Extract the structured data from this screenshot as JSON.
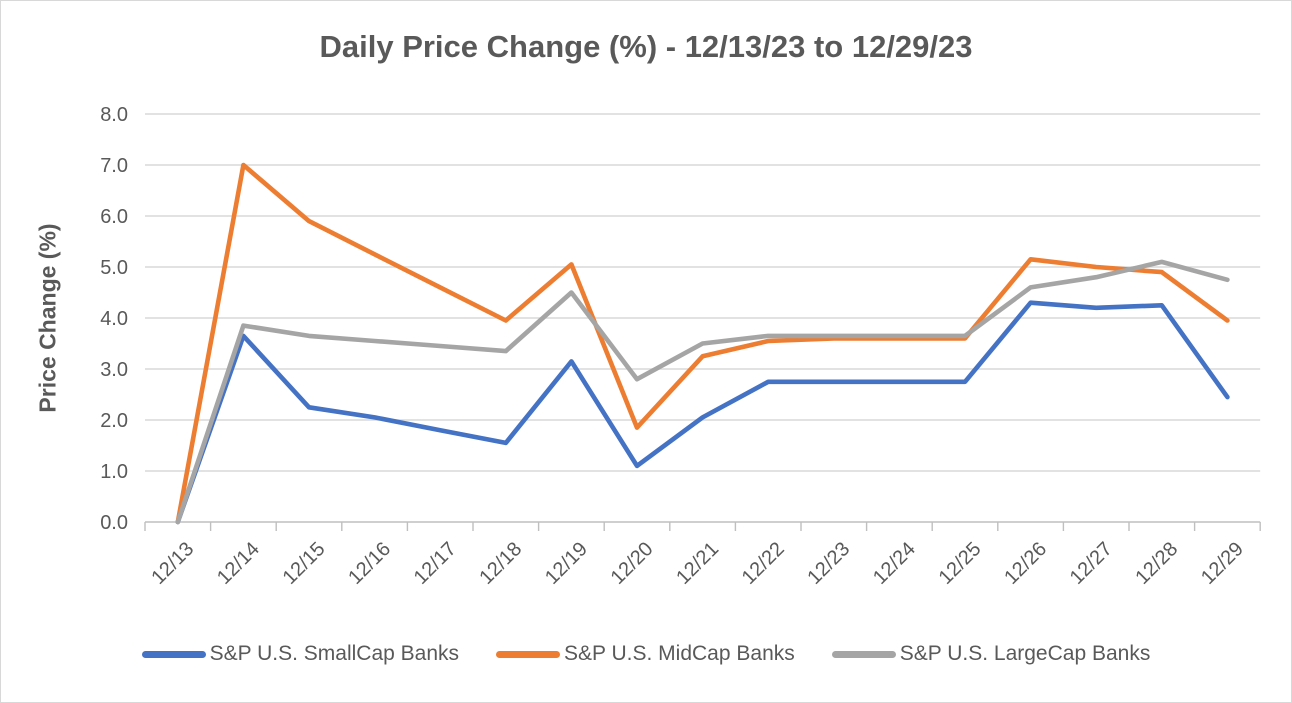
{
  "chart_data": {
    "type": "line",
    "title": "Daily Price Change (%) - 12/13/23 to 12/29/23",
    "ylabel": "Price Change (%)",
    "xlabel": "",
    "ylim": [
      0,
      8
    ],
    "y_ticks": [
      0,
      1,
      2,
      3,
      4,
      5,
      6,
      7,
      8
    ],
    "y_tick_labels": [
      "0.0",
      "1.0",
      "2.0",
      "3.0",
      "4.0",
      "5.0",
      "6.0",
      "7.0",
      "8.0"
    ],
    "grid": "horizontal",
    "legend_position": "bottom",
    "grid_color": "#d9d9d9",
    "axis_color": "#bfbfbf",
    "text_color": "#595959",
    "categories": [
      "12/13",
      "12/14",
      "12/15",
      "12/16",
      "12/17",
      "12/18",
      "12/19",
      "12/20",
      "12/21",
      "12/22",
      "12/23",
      "12/24",
      "12/25",
      "12/26",
      "12/27",
      "12/28",
      "12/29"
    ],
    "series": [
      {
        "key": "smallcap",
        "name": "S&P U.S. SmallCap Banks",
        "color": "#4472C4",
        "values": [
          0.0,
          3.65,
          2.25,
          2.05,
          1.8,
          1.55,
          3.15,
          1.1,
          2.05,
          2.75,
          2.75,
          2.75,
          2.75,
          4.3,
          4.2,
          4.25,
          2.45
        ]
      },
      {
        "key": "midcap",
        "name": "S&P U.S. MidCap Banks",
        "color": "#ED7D31",
        "values": [
          0.0,
          7.0,
          5.9,
          5.25,
          4.6,
          3.95,
          5.05,
          1.85,
          3.25,
          3.55,
          3.6,
          3.6,
          3.6,
          5.15,
          5.0,
          4.9,
          3.95
        ]
      },
      {
        "key": "largecap",
        "name": "S&P U.S. LargeCap Banks",
        "color": "#A5A5A5",
        "values": [
          0.0,
          3.85,
          3.65,
          3.55,
          3.45,
          3.35,
          4.5,
          2.8,
          3.5,
          3.65,
          3.65,
          3.65,
          3.65,
          4.6,
          4.8,
          5.1,
          4.75
        ]
      }
    ]
  }
}
